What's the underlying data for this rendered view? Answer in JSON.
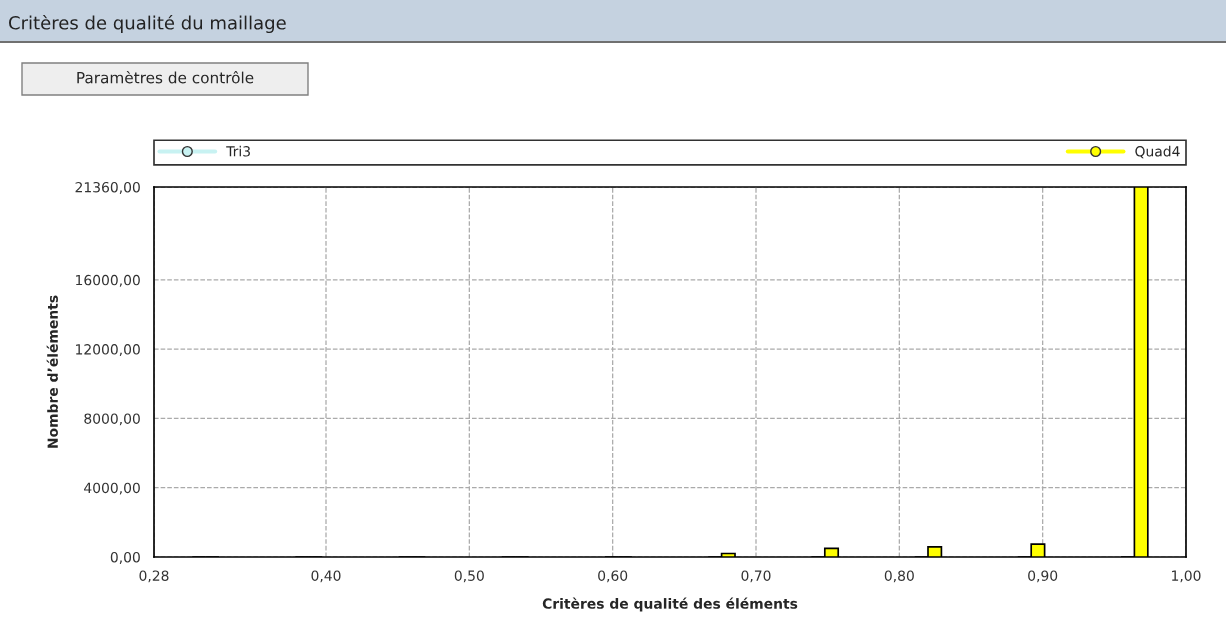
{
  "chart_data": {
    "type": "bar",
    "title": "Critères de qualité du maillage",
    "annotations": [
      "Paramètres de contrôle"
    ],
    "xlabel": "Critères de qualité des éléments",
    "ylabel": "Nombre d’éléments",
    "x": [
      0.316,
      0.388,
      0.46,
      0.532,
      0.604,
      0.676,
      0.748,
      0.82,
      0.892,
      0.964
    ],
    "series": [
      {
        "name": "Tri3",
        "color": "#c8f2f2",
        "values": [
          0,
          0,
          0,
          0,
          0,
          0,
          0,
          0,
          0,
          0
        ]
      },
      {
        "name": "Quad4",
        "color": "#ffff00",
        "values": [
          0,
          0,
          0,
          0,
          0,
          200,
          500,
          580,
          740,
          21360
        ]
      }
    ],
    "xlim": [
      0.28,
      1.0
    ],
    "xticks": [
      {
        "value": 0.28,
        "label": "0,28"
      },
      {
        "value": 0.4,
        "label": "0,40"
      },
      {
        "value": 0.5,
        "label": "0,50"
      },
      {
        "value": 0.6,
        "label": "0,60"
      },
      {
        "value": 0.7,
        "label": "0,70"
      },
      {
        "value": 0.8,
        "label": "0,80"
      },
      {
        "value": 0.9,
        "label": "0,90"
      },
      {
        "value": 1.0,
        "label": "1,00"
      }
    ],
    "ylim": [
      0,
      21360
    ],
    "yticks": [
      {
        "value": 0,
        "label": "0,00"
      },
      {
        "value": 4000,
        "label": "4000,00"
      },
      {
        "value": 8000,
        "label": "8000,00"
      },
      {
        "value": 12000,
        "label": "12000,00"
      },
      {
        "value": 16000,
        "label": "16000,00"
      },
      {
        "value": 21360,
        "label": "21360,00"
      }
    ],
    "grid": true,
    "legend": "top",
    "marker": "circle"
  }
}
